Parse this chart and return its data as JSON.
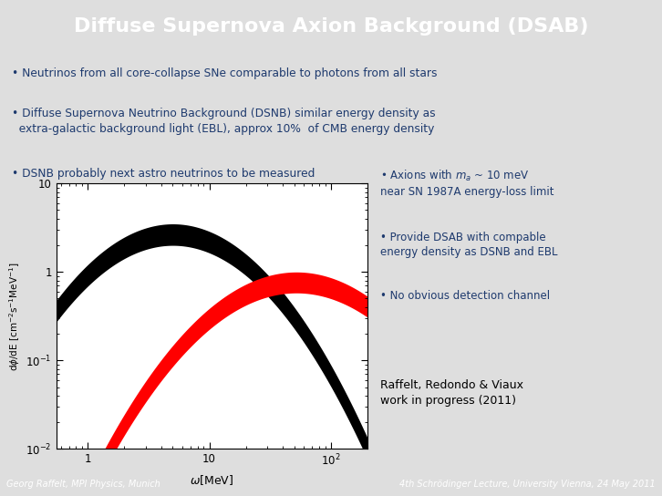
{
  "title": "Diffuse Supernova Axion Background (DSAB)",
  "title_bg_color": "#636363",
  "title_text_color": "#ffffff",
  "slide_bg_color": "#dedede",
  "bullet_points": [
    "Neutrinos from all core-collapse SNe comparable to photons from all stars",
    "Diffuse Supernova Neutrino Background (DSNB) similar energy density as\n  extra-galactic background light (EBL), approx 10%  of CMB energy density",
    "DSNB probably next astro neutrinos to be measured"
  ],
  "bullet_color": "#1e3a6e",
  "right_bullets": [
    "Axions with $m_a$ ~ 10 meV\nnear SN 1987A energy-loss limit",
    "Provide DSAB with compable\nenergy density as DSNB and EBL",
    "No obvious detection channel"
  ],
  "citation": "Raffelt, Redondo & Viaux\nwork in progress (2011)",
  "xlabel": "$\\omega$[MeV]",
  "ylabel": "d$\\phi$/dE [cm$^{-2}$s$^{-1}$MeV$^{-1}$]",
  "xlim": [
    0.55,
    200
  ],
  "ylim": [
    0.01,
    10
  ],
  "footer_left": "Georg Raffelt, MPI Physics, Munich",
  "footer_right": "4th Schrödinger Lecture, University Vienna, 24 May 2011",
  "footer_bg": "#1e3a6e",
  "footer_text_color": "#ffffff",
  "black_peak_x": 5.0,
  "black_peak_upper": 3.5,
  "black_peak_lower": 2.0,
  "black_sigma": 0.48,
  "red_peak_x": 52.0,
  "red_peak_upper": 1.0,
  "red_peak_lower": 0.58,
  "red_sigma": 0.52
}
